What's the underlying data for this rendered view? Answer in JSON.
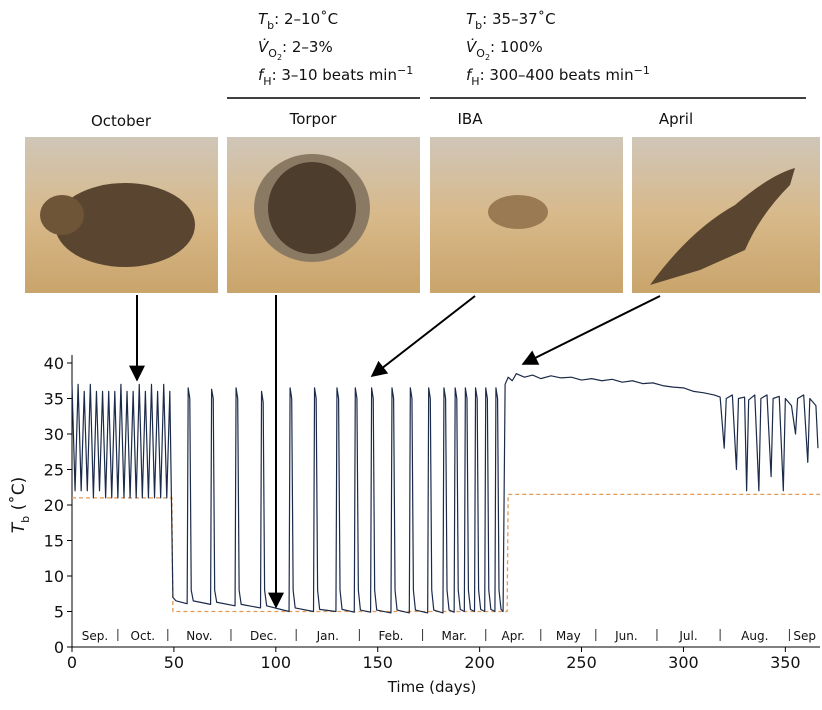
{
  "chart_data": {
    "type": "line",
    "annotations": [
      {
        "lines": [
          [
            "T",
            "b",
            ": 2–10˚C"
          ],
          [
            "V̇",
            "O",
            "2",
            ": 2–3%"
          ],
          [
            "f",
            "H",
            ": 3–10 beats min",
            "−1"
          ]
        ]
      },
      {
        "lines": [
          [
            "T",
            "b",
            ": 35–37˚C"
          ],
          [
            "V̇",
            "O",
            "2",
            ": 100%"
          ],
          [
            "f",
            "H",
            ": 300–400 beats min",
            "−1"
          ]
        ]
      }
    ],
    "panels": [
      "October",
      "Torpor",
      "IBA",
      "April"
    ],
    "x_label": "Time (days)",
    "y_label": [
      "T",
      "b",
      " (˚C)"
    ],
    "xlim": [
      0,
      367
    ],
    "ylim": [
      0,
      40
    ],
    "xticks": [
      0,
      50,
      100,
      150,
      200,
      250,
      300,
      350
    ],
    "yticks": [
      0,
      5,
      10,
      15,
      20,
      25,
      30,
      35,
      40
    ],
    "months": [
      "Sep.",
      "Oct.",
      "Nov.",
      "Dec.",
      "Jan.",
      "Feb.",
      "Mar.",
      "Apr.",
      "May",
      "Jun.",
      "Jul.",
      "Aug.",
      "Sep"
    ],
    "month_dividers": [
      22.5,
      47,
      78,
      110,
      141,
      172,
      203,
      230,
      257,
      287,
      318,
      352
    ],
    "series": [
      {
        "color": "#1c2b4a",
        "style": "solid",
        "x": [
          0,
          1.5,
          3,
          4.5,
          6,
          7.5,
          9,
          10.5,
          12,
          13.5,
          15,
          16.5,
          18,
          19.5,
          21,
          22.5,
          24,
          25.5,
          27,
          28.5,
          30,
          31.5,
          33,
          34.5,
          36,
          37.5,
          39,
          40.5,
          42,
          43.5,
          45,
          46.5,
          48,
          49.5,
          51,
          55,
          56.5,
          57,
          57.8,
          58.5,
          59.5,
          68,
          68.5,
          69.3,
          70,
          71,
          80,
          80.5,
          81.3,
          82,
          83,
          92.5,
          93,
          93.8,
          94.5,
          95.5,
          106.5,
          107,
          107.8,
          108.5,
          109.5,
          118.5,
          119,
          119.8,
          120.5,
          121.5,
          129.5,
          130,
          130.8,
          131.5,
          132.5,
          138.5,
          139,
          139.8,
          140.5,
          141.5,
          146.5,
          147,
          147.8,
          148.5,
          149.5,
          156.5,
          157,
          157.8,
          158.5,
          159.5,
          165.5,
          166,
          166.8,
          167.5,
          168.5,
          174.5,
          175,
          175.8,
          176.5,
          177.5,
          182,
          182.5,
          183.3,
          184,
          185,
          187.5,
          188,
          188.8,
          189.5,
          190.5,
          192.5,
          193,
          193.8,
          194.5,
          195.5,
          197.5,
          198,
          198.8,
          199.5,
          200.5,
          202.5,
          203,
          203.8,
          204.5,
          205.5,
          207.5,
          208,
          208.8,
          209.5,
          210.5,
          211.5,
          212.5,
          214,
          216,
          218,
          222,
          226,
          230,
          235,
          240,
          245,
          250,
          255,
          260,
          265,
          270,
          275,
          280,
          285,
          290,
          295,
          300,
          305,
          310,
          315,
          318,
          320,
          321,
          324,
          326,
          327,
          330,
          331,
          332,
          335,
          337,
          338,
          341,
          343,
          344,
          347,
          349,
          350,
          353,
          355,
          356,
          359,
          361,
          362,
          365,
          366
        ],
        "values": [
          37,
          22,
          37,
          22,
          36,
          22,
          37,
          21,
          36,
          22,
          36,
          21,
          36,
          21,
          36,
          21,
          37,
          21,
          36,
          21,
          36,
          21,
          37,
          21,
          36,
          21,
          37,
          21,
          36,
          21,
          37,
          21,
          36,
          7,
          6.5,
          6.2,
          6.1,
          36.5,
          35,
          8,
          6.5,
          6.0,
          36.3,
          35,
          8,
          6.3,
          5.8,
          36.5,
          35,
          8,
          6,
          5.5,
          36,
          34.5,
          8,
          5.8,
          5.0,
          36.5,
          35,
          8,
          5.5,
          5.0,
          36.5,
          35,
          8,
          5.3,
          5.0,
          36.5,
          35,
          8,
          5.3,
          4.9,
          36.5,
          35,
          8,
          5.2,
          4.9,
          36.5,
          35,
          8,
          5.2,
          4.8,
          36.5,
          35,
          8,
          5.2,
          4.8,
          36.5,
          35,
          8,
          5.2,
          4.8,
          36.5,
          35,
          8,
          5.2,
          4.8,
          36.5,
          35,
          8,
          5.2,
          4.9,
          36.5,
          35,
          8,
          5.3,
          5,
          36.5,
          35,
          8,
          5.3,
          5,
          36.5,
          35,
          8,
          5.3,
          5,
          36.5,
          35,
          8,
          5.3,
          5,
          36.5,
          35,
          8,
          5.3,
          5,
          37,
          38,
          37.5,
          38.5,
          38,
          38.3,
          37.8,
          38.2,
          37.9,
          38,
          37.6,
          37.8,
          37.5,
          37.7,
          37.3,
          37.5,
          37.1,
          37.2,
          36.8,
          36.6,
          36.5,
          36,
          35.8,
          35.5,
          35.2,
          28,
          35,
          35.5,
          25,
          35,
          35.2,
          22,
          34.8,
          35.5,
          22,
          35,
          35.5,
          24,
          35,
          35.3,
          22,
          35,
          34,
          30,
          35,
          35.5,
          26,
          35,
          34,
          28
        ]
      },
      {
        "color": "#e39a55",
        "style": "dashed",
        "x": [
          0,
          49,
          49.5,
          213.5,
          214,
          367
        ],
        "values": [
          21,
          21,
          5,
          5,
          21.5,
          21.5
        ]
      }
    ]
  }
}
